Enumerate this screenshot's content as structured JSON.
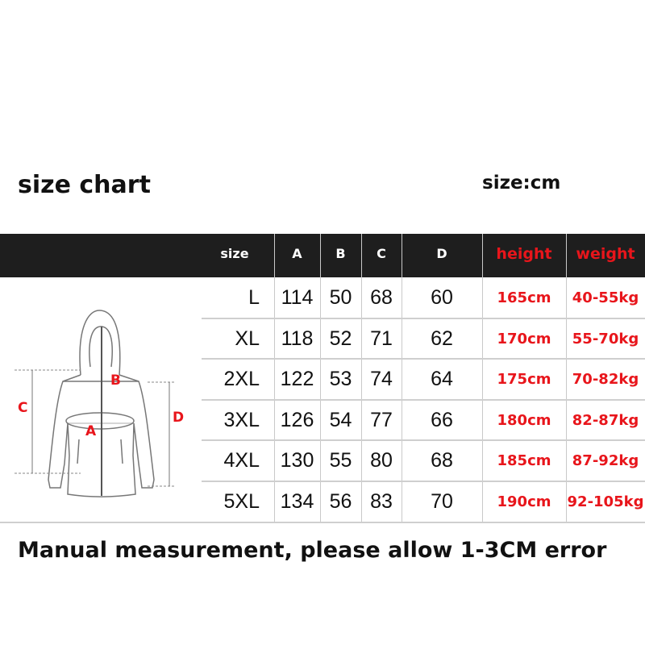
{
  "title": "size chart",
  "unit": "size:cm",
  "columns": [
    "size",
    "A",
    "B",
    "C",
    "D",
    "height",
    "weight"
  ],
  "rows": [
    [
      "L",
      "114",
      "50",
      "68",
      "60",
      "165cm",
      "40-55kg"
    ],
    [
      "XL",
      "118",
      "52",
      "71",
      "62",
      "170cm",
      "55-70kg"
    ],
    [
      "2XL",
      "122",
      "53",
      "74",
      "64",
      "175cm",
      "70-82kg"
    ],
    [
      "3XL",
      "126",
      "54",
      "77",
      "66",
      "180cm",
      "82-87kg"
    ],
    [
      "4XL",
      "130",
      "55",
      "80",
      "68",
      "185cm",
      "87-92kg"
    ],
    [
      "5XL",
      "134",
      "56",
      "83",
      "70",
      "190cm",
      "92-105kg"
    ]
  ],
  "diagram_labels": {
    "A": "A",
    "B": "B",
    "C": "C",
    "D": "D"
  },
  "note": "Manual measurement, please allow 1-3CM error",
  "colors": {
    "header_bg": "#1e1e1e",
    "accent_red": "#e8151b",
    "grid": "#c9c9c9"
  }
}
